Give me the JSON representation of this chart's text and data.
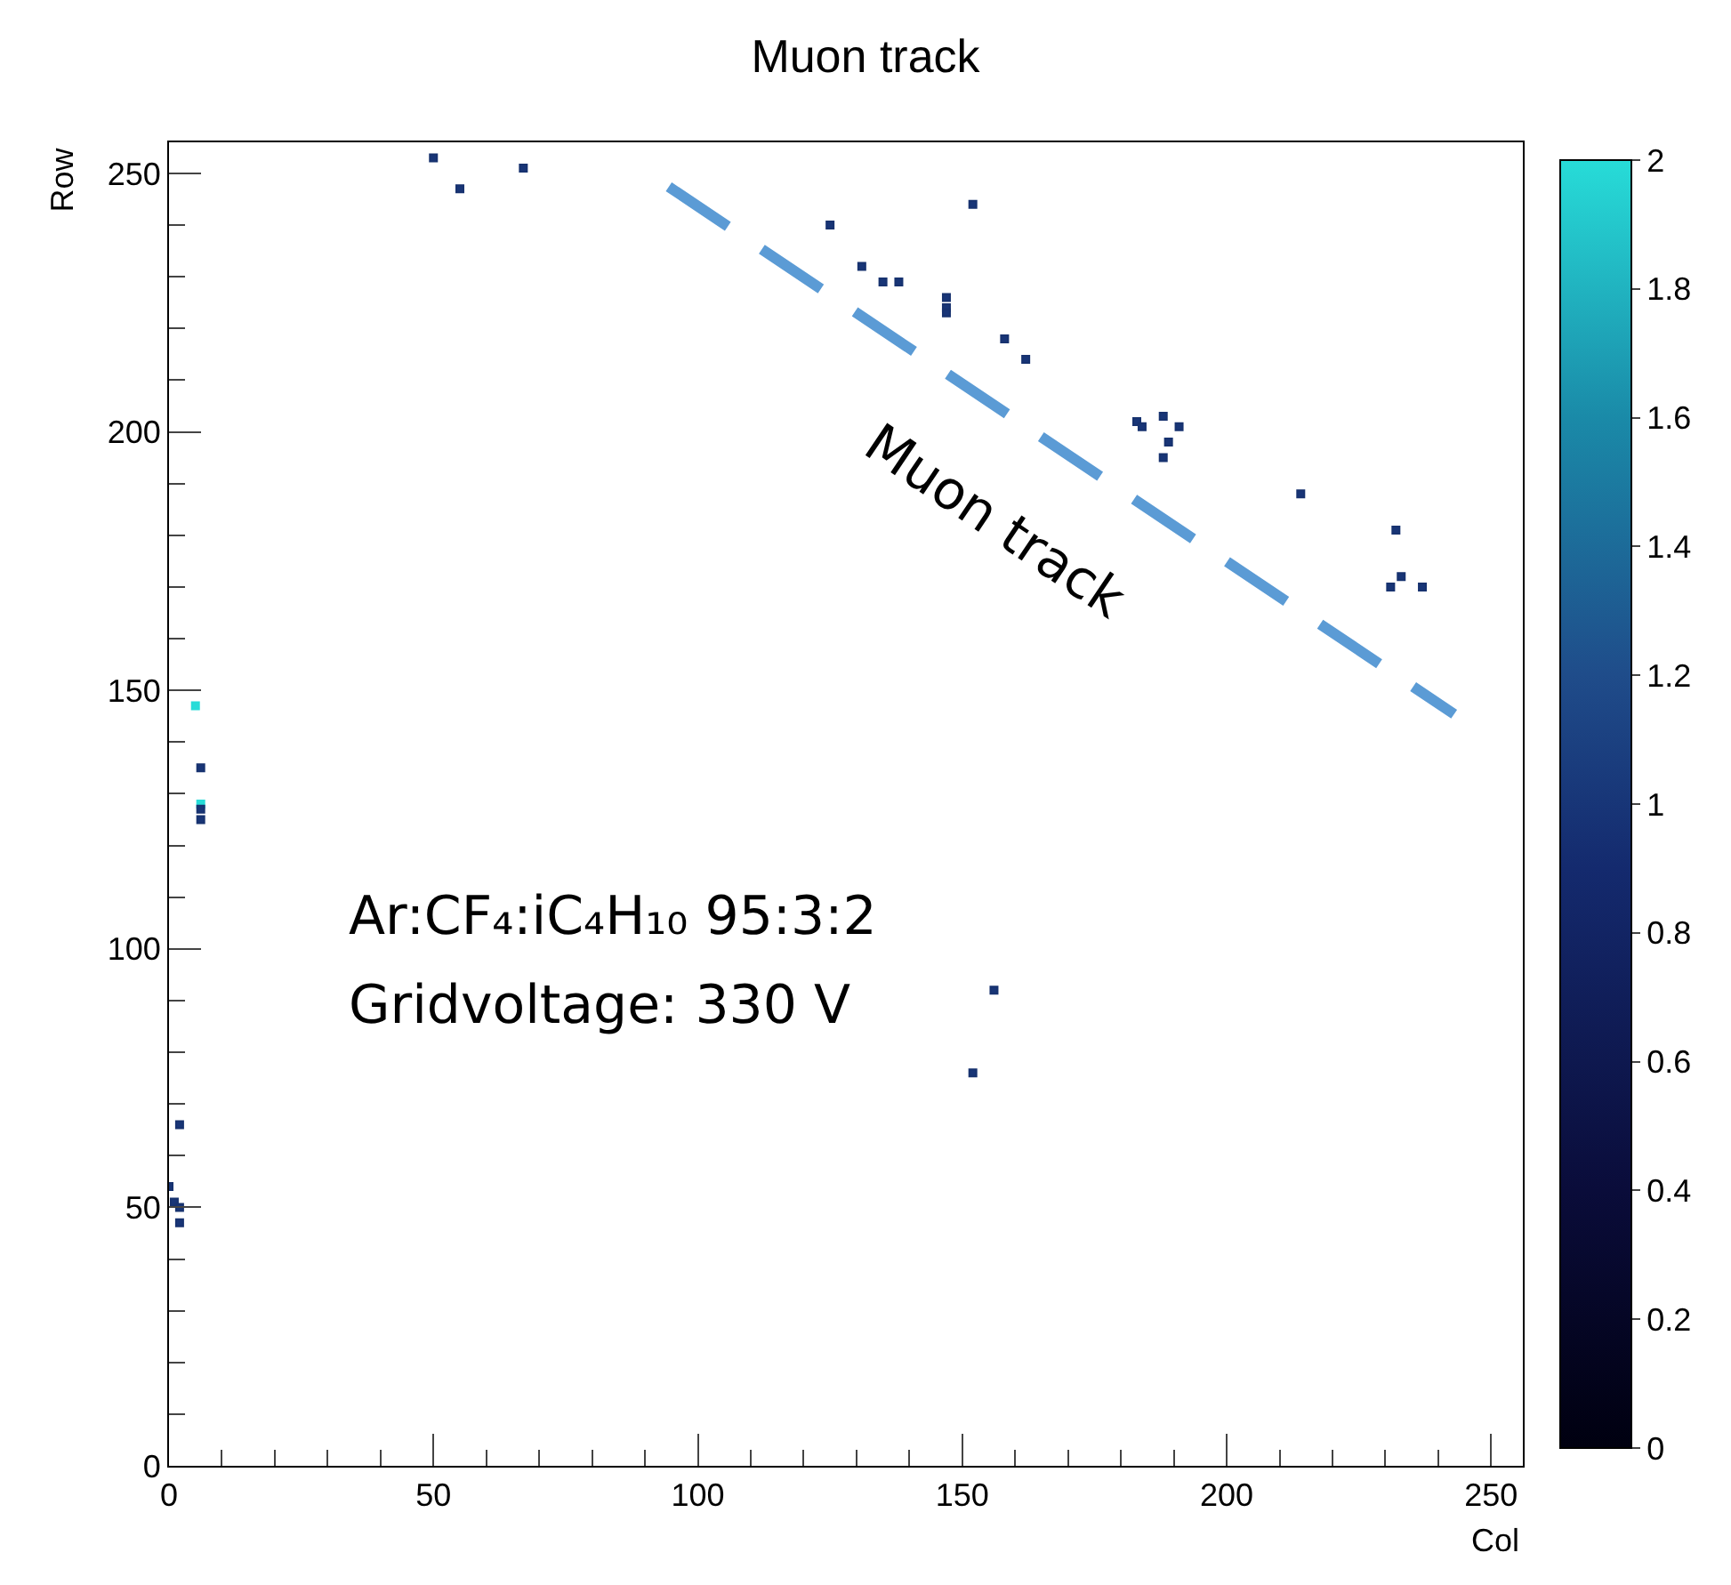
{
  "chart_data": {
    "type": "scatter",
    "title": "Muon track",
    "xlabel": "Col",
    "ylabel": "Row",
    "xlim": [
      0,
      256
    ],
    "ylim": [
      0,
      256
    ],
    "xticks": [
      0,
      50,
      100,
      150,
      200,
      250
    ],
    "yticks": [
      0,
      50,
      100,
      150,
      200,
      250
    ],
    "clim": [
      0,
      2
    ],
    "cticks": [
      0,
      0.2,
      0.4,
      0.6,
      0.8,
      1,
      1.2,
      1.4,
      1.6,
      1.8,
      2
    ],
    "marker": "square",
    "series": [
      {
        "x": [
          50,
          55,
          67,
          125,
          152,
          131,
          135,
          138,
          147,
          147,
          147,
          158,
          162,
          183,
          184,
          188,
          191,
          189,
          188,
          214,
          232,
          233,
          231,
          237,
          5,
          6,
          6,
          6,
          6,
          2,
          0,
          1,
          2,
          2,
          156,
          152
        ],
        "values": [
          253,
          247,
          251,
          240,
          244,
          232,
          229,
          229,
          226,
          224,
          223,
          218,
          214,
          202,
          201,
          203,
          201,
          198,
          195,
          188,
          181,
          172,
          170,
          170,
          147,
          135,
          128,
          127,
          125,
          66,
          54,
          51,
          50,
          47,
          92,
          76
        ],
        "cvalues": [
          1,
          1,
          1,
          1,
          1,
          1,
          1,
          1,
          1,
          1,
          1,
          1,
          1,
          1,
          1,
          1,
          1,
          1,
          1,
          1,
          1,
          1,
          1,
          1,
          2,
          1,
          2,
          1,
          1,
          1,
          1,
          1,
          1,
          1,
          1,
          1
        ],
        "colors": [
          "#17326f",
          "#17326f",
          "#17326f",
          "#17326f",
          "#17326f",
          "#17326f",
          "#17326f",
          "#17326f",
          "#17326f",
          "#17326f",
          "#17326f",
          "#17326f",
          "#17326f",
          "#17326f",
          "#17326f",
          "#17326f",
          "#17326f",
          "#17326f",
          "#17326f",
          "#17326f",
          "#17326f",
          "#17326f",
          "#17326f",
          "#17326f",
          "#27dcd8",
          "#17326f",
          "#27dcd8",
          "#17326f",
          "#17326f",
          "#17326f",
          "#17326f",
          "#17326f",
          "#17326f",
          "#17326f",
          "#17326f",
          "#17326f"
        ]
      },
      {
        "type": "line",
        "color": "#5b9bd5",
        "line_style": "dashed",
        "marker": "none",
        "x": [
          94.5,
          243
        ],
        "values": [
          247.4,
          145.4
        ]
      }
    ],
    "annotations": [
      "Muon track",
      "Ar:CF₄:iC₄H₁₀ 95:3:2",
      "Gridvoltage: 330 V"
    ]
  }
}
